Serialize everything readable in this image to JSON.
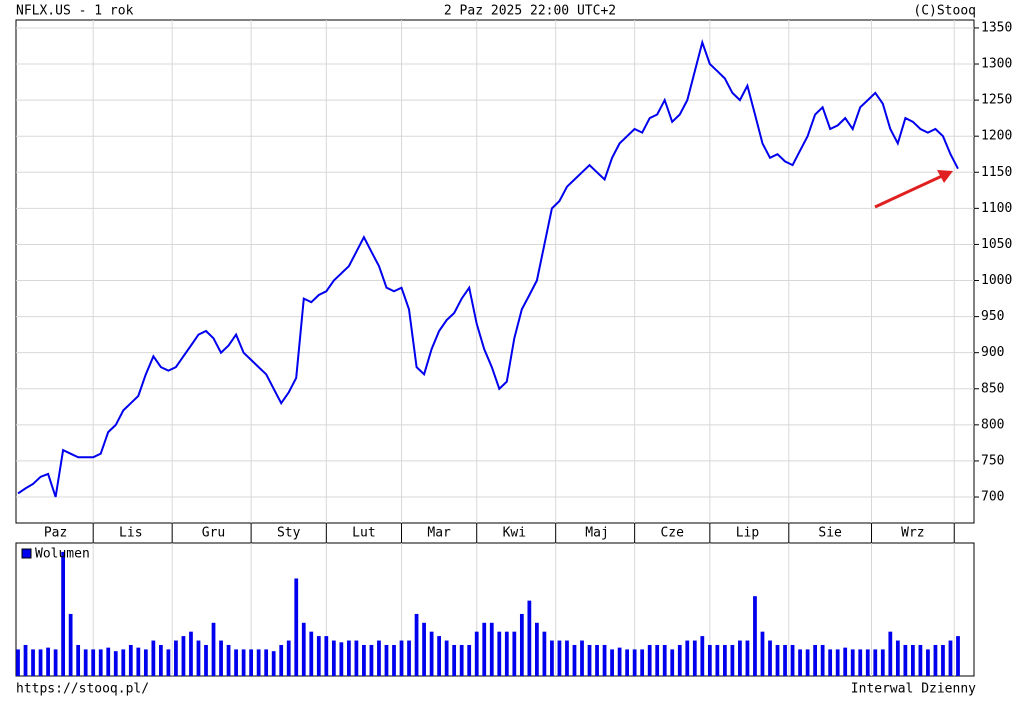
{
  "header": {
    "left": "NFLX.US - 1 rok",
    "center": "2 Paz 2025 22:00 UTC+2",
    "right": "(C)Stooq"
  },
  "footer": {
    "left": "https://stooq.pl/",
    "right": "Interwal Dzienny"
  },
  "chart_data": [
    {
      "type": "line",
      "color": "#0000ee",
      "grid": true,
      "categories": [
        null,
        null,
        null,
        null,
        null,
        "Paz",
        null,
        null,
        null,
        null,
        null,
        null,
        null,
        null,
        null,
        "Lis",
        null,
        null,
        null,
        null,
        null,
        null,
        null,
        null,
        null,
        null,
        "Gru",
        null,
        null,
        null,
        null,
        null,
        null,
        null,
        null,
        null,
        "Sty",
        null,
        null,
        null,
        null,
        null,
        null,
        null,
        null,
        null,
        "Lut",
        null,
        null,
        null,
        null,
        null,
        null,
        null,
        null,
        null,
        "Mar",
        null,
        null,
        null,
        null,
        null,
        null,
        null,
        null,
        null,
        "Kwi",
        null,
        null,
        null,
        null,
        null,
        null,
        null,
        null,
        null,
        null,
        "Maj",
        null,
        null,
        null,
        null,
        null,
        null,
        null,
        null,
        null,
        "Cze",
        null,
        null,
        null,
        null,
        null,
        null,
        null,
        null,
        null,
        "Lip",
        null,
        null,
        null,
        null,
        null,
        null,
        null,
        null,
        null,
        null,
        "Sie",
        null,
        null,
        null,
        null,
        null,
        null,
        null,
        null,
        null,
        null,
        "Wrz",
        null,
        null,
        null,
        null,
        null,
        null
      ],
      "values": [
        705,
        712,
        718,
        728,
        732,
        700,
        765,
        760,
        755,
        755,
        755,
        760,
        790,
        800,
        820,
        830,
        840,
        870,
        895,
        880,
        875,
        880,
        895,
        910,
        925,
        930,
        920,
        900,
        910,
        925,
        900,
        890,
        880,
        870,
        850,
        830,
        845,
        865,
        975,
        970,
        980,
        985,
        1000,
        1010,
        1020,
        1040,
        1060,
        1040,
        1020,
        990,
        985,
        990,
        960,
        880,
        870,
        905,
        930,
        945,
        955,
        975,
        990,
        940,
        905,
        880,
        850,
        860,
        920,
        960,
        980,
        1000,
        1050,
        1100,
        1110,
        1130,
        1140,
        1150,
        1160,
        1150,
        1140,
        1170,
        1190,
        1200,
        1210,
        1205,
        1225,
        1230,
        1250,
        1220,
        1230,
        1250,
        1290,
        1330,
        1300,
        1290,
        1280,
        1260,
        1250,
        1270,
        1230,
        1190,
        1170,
        1175,
        1165,
        1160,
        1180,
        1200,
        1230,
        1240,
        1210,
        1215,
        1225,
        1210,
        1240,
        1250,
        1260,
        1245,
        1210,
        1190,
        1225,
        1220,
        1210,
        1205,
        1210,
        1200,
        1175,
        1155
      ],
      "ylim": [
        664,
        1361
      ],
      "yticks": [
        700,
        750,
        800,
        850,
        900,
        950,
        1000,
        1050,
        1100,
        1150,
        1200,
        1250,
        1300,
        1350
      ]
    },
    {
      "type": "bar",
      "legend": "Wolumen",
      "color": "#0000ee",
      "values": [
        3,
        3.5,
        3,
        3,
        3.2,
        3,
        14,
        7,
        3.5,
        3,
        3,
        3,
        3.2,
        2.8,
        3,
        3.5,
        3.2,
        3,
        4,
        3.5,
        3,
        4,
        4.5,
        5,
        4,
        3.5,
        6,
        4,
        3.5,
        3,
        3,
        3,
        3,
        3,
        2.8,
        3.5,
        4,
        11,
        6,
        5,
        4.5,
        4.5,
        4,
        3.8,
        4,
        4,
        3.5,
        3.5,
        4,
        3.5,
        3.5,
        4,
        4,
        7,
        6,
        5,
        4.5,
        4,
        3.5,
        3.5,
        3.5,
        5,
        6,
        6,
        5,
        5,
        5,
        7,
        8.5,
        6,
        5,
        4,
        4,
        4,
        3.5,
        4,
        3.5,
        3.5,
        3.5,
        3,
        3.2,
        3,
        3,
        3,
        3.5,
        3.5,
        3.5,
        3,
        3.5,
        4,
        4,
        4.5,
        3.5,
        3.5,
        3.5,
        3.5,
        4,
        4,
        9,
        5,
        4,
        3.5,
        3.5,
        3.5,
        3,
        3,
        3.5,
        3.5,
        3,
        3,
        3.2,
        3,
        3,
        3,
        3,
        3,
        5,
        4,
        3.5,
        3.5,
        3.5,
        3,
        3.5,
        3.5,
        4,
        4.5
      ],
      "ylim": [
        0,
        15
      ]
    }
  ]
}
